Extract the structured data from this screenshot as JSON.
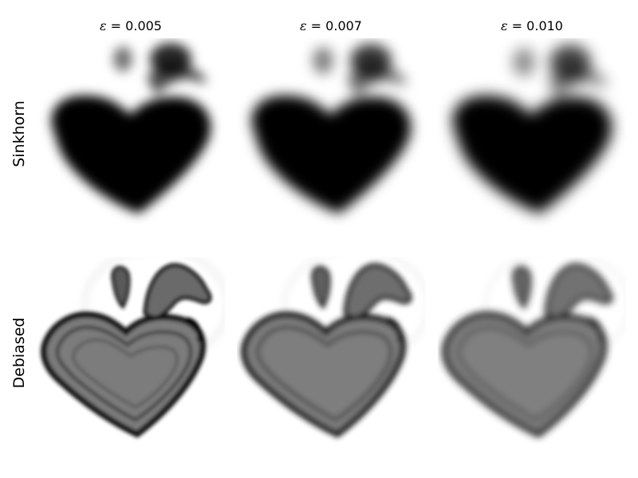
{
  "columns": [
    {
      "epsilon_symbol": "ε",
      "equals": " = ",
      "value": "0.005"
    },
    {
      "epsilon_symbol": "ε",
      "equals": " = ",
      "value": "0.007"
    },
    {
      "epsilon_symbol": "ε",
      "equals": " = ",
      "value": "0.010"
    }
  ],
  "rows": [
    {
      "label": "Sinkhorn"
    },
    {
      "label": "Debiased"
    }
  ],
  "colors": {
    "sinkhorn_fill": "#000000",
    "debiased_fill": "#7a7a7a",
    "debiased_edge": "#1a1a1a",
    "background": "#ffffff"
  }
}
